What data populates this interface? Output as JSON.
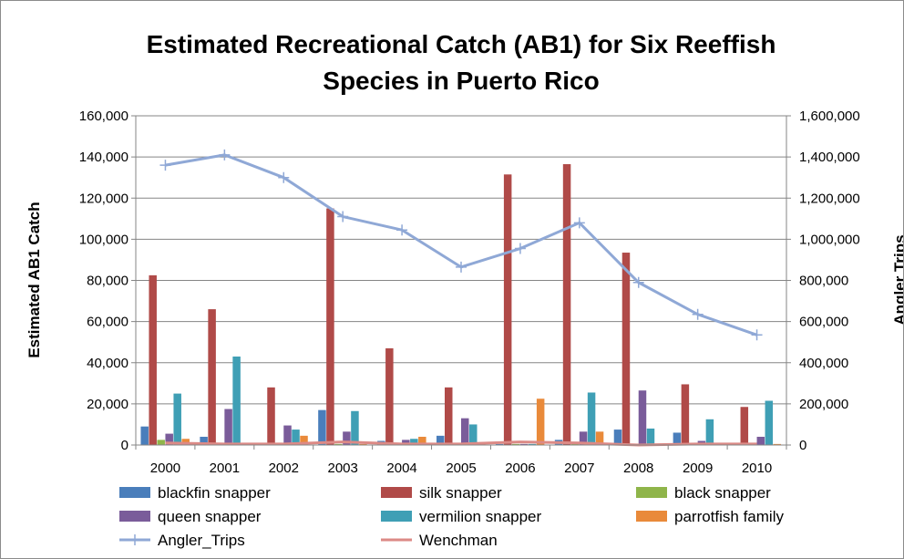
{
  "chart_data": {
    "type": "bar",
    "title_line1": "Estimated Recreational Catch (AB1) for Six Reeffish",
    "title_line2": "Species in Puerto Rico",
    "ylabel": "Estimated AB1 Catch",
    "y2label": "Angler Trips",
    "ylim": [
      0,
      160000
    ],
    "y2lim": [
      0,
      1600000
    ],
    "yticks": [
      "0",
      "20,000",
      "40,000",
      "60,000",
      "80,000",
      "100,000",
      "120,000",
      "140,000",
      "160,000"
    ],
    "y2ticks": [
      "0",
      "200,000",
      "400,000",
      "600,000",
      "800,000",
      "1,000,000",
      "1,200,000",
      "1,400,000",
      "1,600,000"
    ],
    "grid": true,
    "legend_position": "bottom",
    "categories": [
      "2000",
      "2001",
      "2002",
      "2003",
      "2004",
      "2005",
      "2006",
      "2007",
      "2008",
      "2009",
      "2010"
    ],
    "series": [
      {
        "name": "blackfin snapper",
        "color": "#4a7ebb",
        "axis": "primary",
        "kind": "bar",
        "values": [
          9000,
          4000,
          500,
          17000,
          2000,
          4500,
          500,
          2500,
          7500,
          6000,
          1000
        ]
      },
      {
        "name": "silk snapper",
        "color": "#b04a48",
        "axis": "primary",
        "kind": "bar",
        "values": [
          82500,
          66000,
          28000,
          115000,
          47000,
          28000,
          131500,
          136500,
          93500,
          29500,
          18500
        ]
      },
      {
        "name": "black snapper",
        "color": "#8fb54a",
        "axis": "primary",
        "kind": "bar",
        "values": [
          2500,
          500,
          500,
          500,
          500,
          500,
          500,
          500,
          500,
          500,
          500
        ]
      },
      {
        "name": "queen snapper",
        "color": "#7a5c9a",
        "axis": "primary",
        "kind": "bar",
        "values": [
          5500,
          17500,
          9500,
          6500,
          2500,
          13000,
          500,
          6500,
          26500,
          2000,
          4000
        ]
      },
      {
        "name": "vermilion snapper",
        "color": "#3f9fb5",
        "axis": "primary",
        "kind": "bar",
        "values": [
          25000,
          43000,
          7500,
          16500,
          3000,
          10000,
          500,
          25500,
          8000,
          12500,
          21500
        ]
      },
      {
        "name": "parrotfish family",
        "color": "#e98a3a",
        "axis": "primary",
        "kind": "bar",
        "values": [
          3000,
          500,
          4500,
          500,
          4000,
          500,
          22500,
          6500,
          500,
          500,
          500
        ]
      },
      {
        "name": "Angler_Trips",
        "color": "#8fa8d6",
        "axis": "secondary",
        "kind": "line",
        "values": [
          1360000,
          1410000,
          1300000,
          1110000,
          1045000,
          865000,
          955000,
          1080000,
          790000,
          635000,
          535000
        ]
      },
      {
        "name": "Wenchman",
        "color": "#dc8a86",
        "axis": "primary",
        "kind": "line",
        "values": [
          1000,
          500,
          500,
          1500,
          500,
          500,
          1500,
          1000,
          0,
          500,
          500
        ]
      }
    ]
  }
}
